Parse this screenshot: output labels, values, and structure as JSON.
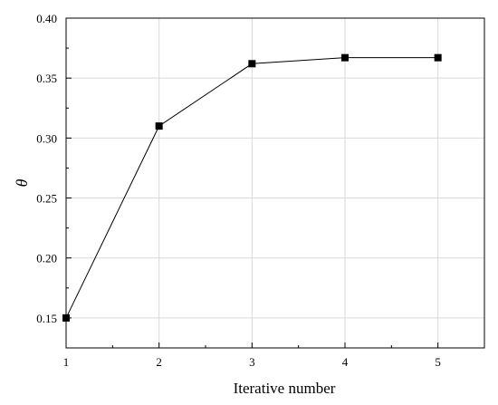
{
  "chart_data": {
    "type": "line",
    "title": "",
    "xlabel": "Iterative number",
    "ylabel": "θ",
    "x": [
      1,
      2,
      3,
      4,
      5
    ],
    "series": [
      {
        "values": [
          0.15,
          0.31,
          0.362,
          0.367,
          0.367
        ]
      }
    ],
    "xlim": [
      1,
      5.5
    ],
    "ylim": [
      0.125,
      0.4
    ],
    "xticks": [
      "1",
      "2",
      "3",
      "4",
      "5"
    ],
    "yticks": [
      "0.15",
      "0.20",
      "0.25",
      "0.30",
      "0.35",
      "0.40"
    ],
    "grid": true,
    "marker": "square",
    "line_color": "#000000",
    "grid_color": "#d9d9d9"
  }
}
